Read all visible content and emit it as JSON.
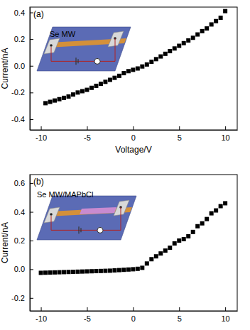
{
  "chart_data": [
    {
      "type": "scatter",
      "annotations": [
        "(a)",
        "Se MW"
      ],
      "x_label": "Voltage/V",
      "y_label": "Current/nA",
      "marker": "square",
      "color": "#000000",
      "xlim": [
        -11.2,
        11.3
      ],
      "ylim": [
        -0.48,
        0.44
      ],
      "xticks": [
        -10,
        -5,
        0,
        5,
        10
      ],
      "yticks": [
        -0.4,
        -0.2,
        {
          "value": 0,
          "label": "0.0"
        },
        0.2,
        0.4
      ],
      "x": [
        -9.5,
        -9,
        -8.5,
        -8,
        -7.5,
        -7,
        -6.5,
        -6,
        -5.5,
        -5,
        -4.5,
        -4,
        -3.5,
        -3,
        -2.5,
        -2,
        -1.5,
        -1,
        -0.5,
        0,
        0.5,
        1,
        1.5,
        2,
        2.5,
        3,
        3.5,
        4,
        4.5,
        5,
        5.5,
        6,
        6.5,
        7,
        7.5,
        8,
        8.5,
        9,
        9.5,
        10
      ],
      "values": [
        -0.28,
        -0.27,
        -0.26,
        -0.25,
        -0.24,
        -0.23,
        -0.215,
        -0.2,
        -0.19,
        -0.18,
        -0.165,
        -0.15,
        -0.135,
        -0.12,
        -0.105,
        -0.09,
        -0.075,
        -0.055,
        -0.04,
        -0.03,
        -0.02,
        -0.005,
        0.01,
        0.03,
        0.05,
        0.07,
        0.09,
        0.11,
        0.13,
        0.15,
        0.17,
        0.19,
        0.21,
        0.235,
        0.26,
        0.28,
        0.31,
        0.335,
        0.36,
        0.41
      ]
    },
    {
      "type": "scatter",
      "annotations": [
        "(b)",
        "Se MW/MAPbCl"
      ],
      "y_label": "Current/nA",
      "marker": "square",
      "color": "#000000",
      "xlim": [
        -11.2,
        11.3
      ],
      "ylim": [
        -0.29,
        0.66
      ],
      "xticks": [
        -10,
        -5,
        0,
        5,
        10
      ],
      "yticks": [
        -0.2,
        {
          "value": 0,
          "label": "0.0"
        },
        0.2,
        0.4,
        0.6
      ],
      "x": [
        -10,
        -9.5,
        -9,
        -8.5,
        -8,
        -7.5,
        -7,
        -6.5,
        -6,
        -5.5,
        -5,
        -4.5,
        -4,
        -3.5,
        -3,
        -2.5,
        -2,
        -1.5,
        -1,
        -0.5,
        0,
        0.5,
        1,
        1.5,
        2,
        2.5,
        3,
        3.5,
        4,
        4.5,
        5,
        5.5,
        6,
        6.5,
        7,
        7.5,
        8,
        8.5,
        9,
        9.5,
        10
      ],
      "values": [
        -0.025,
        -0.024,
        -0.023,
        -0.022,
        -0.021,
        -0.02,
        -0.019,
        -0.018,
        -0.017,
        -0.016,
        -0.015,
        -0.014,
        -0.013,
        -0.012,
        -0.011,
        -0.01,
        -0.008,
        -0.006,
        -0.004,
        -0.002,
        0,
        0.003,
        0.01,
        0.04,
        0.07,
        0.09,
        0.11,
        0.13,
        0.15,
        0.18,
        0.2,
        0.21,
        0.23,
        0.26,
        0.3,
        0.32,
        0.35,
        0.39,
        0.41,
        0.44,
        0.46
      ]
    }
  ]
}
